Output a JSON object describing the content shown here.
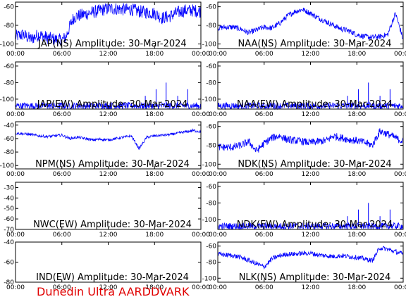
{
  "footer_text": "Dunedin Ultra AARDDVARK",
  "colors": {
    "trace": "#0000ff",
    "trace_alt": "#000000",
    "footer": "#e00000"
  },
  "x_ticks": [
    "00:00",
    "06:00",
    "12:00",
    "18:00",
    "00:00"
  ],
  "chart_data": [
    {
      "type": "line",
      "title": "JAP(NS) Amplitude: 30-Mar-2024",
      "ylim": [
        -105,
        -55
      ],
      "yticks": [
        -100,
        -80,
        -60
      ],
      "x_ticks": [
        "00:00",
        "06:00",
        "12:00",
        "18:00",
        "00:00"
      ],
      "series": [
        {
          "x": [
            0,
            1,
            2,
            3,
            4,
            5,
            6,
            6.5,
            7,
            7.5,
            8,
            9,
            10,
            11,
            12,
            13,
            14,
            15,
            16,
            17,
            18,
            19,
            20,
            21,
            22,
            23,
            24
          ],
          "values": [
            -92,
            -90,
            -95,
            -90,
            -93,
            -95,
            -96,
            -93,
            -82,
            -72,
            -70,
            -68,
            -66,
            -64,
            -62,
            -62,
            -63,
            -63,
            -65,
            -66,
            -67,
            -72,
            -70,
            -66,
            -64,
            -64,
            -65
          ],
          "noise": 7
        }
      ]
    },
    {
      "type": "line",
      "title": "NAA(NS) Amplitude: 30-Mar-2024",
      "ylim": [
        -105,
        -55
      ],
      "yticks": [
        -100,
        -80,
        -60
      ],
      "x_ticks": [
        "00:00",
        "06:00",
        "12:00",
        "18:00",
        "00:00"
      ],
      "series": [
        {
          "x": [
            0,
            1,
            2,
            3,
            4,
            5,
            6,
            7,
            8,
            9,
            10,
            11,
            12,
            13,
            14,
            15,
            16,
            17,
            18,
            19,
            20,
            21,
            22,
            23,
            24
          ],
          "values": [
            -83,
            -82,
            -82,
            -84,
            -88,
            -85,
            -82,
            -83,
            -78,
            -70,
            -65,
            -63,
            -67,
            -72,
            -76,
            -80,
            -84,
            -86,
            -90,
            -92,
            -93,
            -92,
            -90,
            -67,
            -95
          ],
          "noise": 3
        }
      ]
    },
    {
      "type": "line",
      "title": "JAP(EW) Amplitude: 30-Mar-2024",
      "ylim": [
        -112,
        -55
      ],
      "yticks": [
        -100,
        -80,
        -60
      ],
      "x_ticks": [
        "00:00",
        "06:00",
        "12:00",
        "18:00",
        "00:00"
      ],
      "series": [
        {
          "x": [
            0,
            24
          ],
          "values": [
            -108,
            -108
          ],
          "noise": 4
        }
      ]
    },
    {
      "type": "line",
      "title": "NAA(EW) Amplitude: 30-Mar-2024",
      "ylim": [
        -112,
        -55
      ],
      "yticks": [
        -100,
        -80,
        -60
      ],
      "x_ticks": [
        "00:00",
        "06:00",
        "12:00",
        "18:00",
        "00:00"
      ],
      "series": [
        {
          "x": [
            0,
            24
          ],
          "values": [
            -108,
            -108
          ],
          "noise": 4
        }
      ]
    },
    {
      "type": "line",
      "title": "NPM(NS) Amplitude: 30-Mar-2024",
      "ylim": [
        -105,
        -35
      ],
      "yticks": [
        -100,
        -80,
        -60,
        -40
      ],
      "x_ticks": [
        "00:00",
        "06:00",
        "12:00",
        "18:00",
        "00:00"
      ],
      "series": [
        {
          "x": [
            0,
            1,
            2,
            3,
            4,
            5,
            6,
            7,
            8,
            9,
            10,
            11,
            12,
            13,
            14,
            15,
            16,
            17,
            18,
            19,
            20,
            21,
            22,
            23,
            24
          ],
          "values": [
            -52,
            -53,
            -54,
            -56,
            -57,
            -56,
            -55,
            -60,
            -58,
            -60,
            -62,
            -61,
            -62,
            -60,
            -58,
            -56,
            -75,
            -58,
            -56,
            -55,
            -54,
            -52,
            -50,
            -48,
            -50
          ],
          "noise": 2
        }
      ]
    },
    {
      "type": "line",
      "title": "NDK(NS) Amplitude: 30-Mar-2024",
      "ylim": [
        -105,
        -55
      ],
      "yticks": [
        -100,
        -80,
        -60
      ],
      "x_ticks": [
        "00:00",
        "06:00",
        "12:00",
        "18:00",
        "00:00"
      ],
      "series": [
        {
          "x": [
            0,
            1,
            2,
            3,
            4,
            5,
            6,
            7,
            8,
            9,
            10,
            11,
            12,
            13,
            14,
            15,
            16,
            17,
            18,
            19,
            20,
            21,
            22,
            23,
            24
          ],
          "values": [
            -82,
            -82,
            -82,
            -80,
            -76,
            -86,
            -78,
            -72,
            -70,
            -74,
            -75,
            -76,
            -77,
            -76,
            -75,
            -70,
            -72,
            -74,
            -75,
            -77,
            -80,
            -65,
            -68,
            -72,
            -76
          ],
          "noise": 4
        }
      ]
    },
    {
      "type": "line",
      "title": "NWC(EW) Amplitude: 30-Mar-2024",
      "ylim": [
        -70,
        -25
      ],
      "yticks": [
        -70,
        -60,
        -50,
        -40,
        -30
      ],
      "x_ticks": [
        "00:00",
        "06:00",
        "12:00",
        "18:00",
        "00:00"
      ],
      "series": []
    },
    {
      "type": "line",
      "title": "NDK(EW) Amplitude: 30-Mar-2024",
      "ylim": [
        -112,
        -55
      ],
      "yticks": [
        -100,
        -80,
        -60
      ],
      "x_ticks": [
        "00:00",
        "06:00",
        "12:00",
        "18:00",
        "00:00"
      ],
      "series": [
        {
          "x": [
            0,
            24
          ],
          "values": [
            -108,
            -108
          ],
          "noise": 4
        }
      ]
    },
    {
      "type": "line",
      "title": "IND(EW) Amplitude: 30-Mar-2024",
      "ylim": [
        -80,
        -40
      ],
      "yticks": [
        -80,
        -60,
        -40
      ],
      "x_ticks": [
        "00:00",
        "06:00",
        "12:00",
        "18:00",
        "00:00"
      ],
      "series": []
    },
    {
      "type": "line",
      "title": "NLK(NS) Amplitude: 30-Mar-2024",
      "ylim": [
        -105,
        -55
      ],
      "yticks": [
        -100,
        -80,
        -60
      ],
      "x_ticks": [
        "00:00",
        "06:00",
        "12:00",
        "18:00",
        "00:00"
      ],
      "series": [
        {
          "x": [
            0,
            1,
            2,
            3,
            4,
            5,
            6,
            7,
            8,
            9,
            10,
            11,
            12,
            13,
            14,
            15,
            16,
            17,
            18,
            19,
            20,
            21,
            22,
            23,
            24
          ],
          "values": [
            -70,
            -71,
            -72,
            -74,
            -78,
            -82,
            -86,
            -76,
            -72,
            -70,
            -70,
            -69,
            -69,
            -71,
            -72,
            -73,
            -72,
            -73,
            -74,
            -76,
            -78,
            -62,
            -64,
            -67,
            -70
          ],
          "noise": 3
        }
      ]
    }
  ]
}
